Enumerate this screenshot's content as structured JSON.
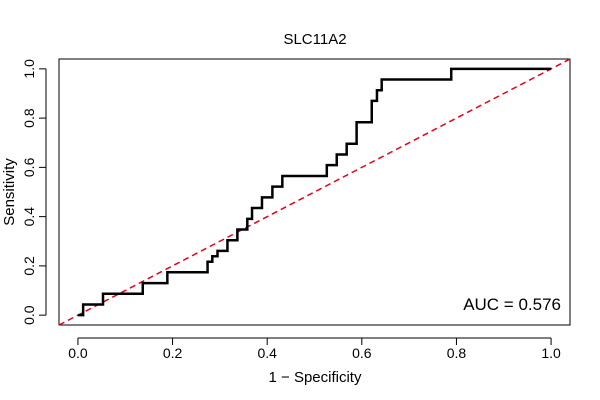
{
  "chart_data": {
    "type": "line",
    "title": "SLC11A2",
    "xlabel": "1 − Specificity",
    "ylabel": "Sensitivity",
    "xlim": [
      -0.04,
      1.04
    ],
    "ylim": [
      -0.04,
      1.04
    ],
    "xticks": [
      0.0,
      0.2,
      0.4,
      0.6,
      0.8,
      1.0
    ],
    "xtick_labels": [
      "0.0",
      "0.2",
      "0.4",
      "0.6",
      "0.8",
      "1.0"
    ],
    "yticks": [
      0.0,
      0.2,
      0.4,
      0.6,
      0.8,
      1.0
    ],
    "ytick_labels": [
      "0.0",
      "0.2",
      "0.4",
      "0.6",
      "0.8",
      "1.0"
    ],
    "annotation": "AUC = 0.576",
    "auc": 0.576,
    "series": [
      {
        "name": "ROC curve",
        "color": "#000000",
        "style": "solid",
        "x": [
          0.0,
          0.011,
          0.011,
          0.021,
          0.021,
          0.053,
          0.053,
          0.063,
          0.063,
          0.137,
          0.137,
          0.189,
          0.189,
          0.274,
          0.274,
          0.284,
          0.284,
          0.295,
          0.295,
          0.316,
          0.316,
          0.326,
          0.326,
          0.337,
          0.337,
          0.347,
          0.347,
          0.358,
          0.358,
          0.368,
          0.368,
          0.389,
          0.389,
          0.4,
          0.4,
          0.411,
          0.411,
          0.421,
          0.421,
          0.432,
          0.432,
          0.442,
          0.442,
          0.484,
          0.484,
          0.526,
          0.526,
          0.547,
          0.547,
          0.568,
          0.568,
          0.579,
          0.579,
          0.589,
          0.589,
          0.6,
          0.6,
          0.621,
          0.621,
          0.632,
          0.632,
          0.642,
          0.642,
          0.789,
          0.789,
          1.0
        ],
        "y": [
          0.0,
          0.0,
          0.043,
          0.043,
          0.043,
          0.043,
          0.087,
          0.087,
          0.087,
          0.087,
          0.13,
          0.13,
          0.174,
          0.174,
          0.217,
          0.217,
          0.239,
          0.239,
          0.261,
          0.261,
          0.304,
          0.304,
          0.304,
          0.304,
          0.348,
          0.348,
          0.348,
          0.348,
          0.391,
          0.391,
          0.435,
          0.435,
          0.478,
          0.478,
          0.478,
          0.478,
          0.522,
          0.522,
          0.522,
          0.522,
          0.565,
          0.565,
          0.565,
          0.565,
          0.565,
          0.565,
          0.609,
          0.609,
          0.652,
          0.652,
          0.696,
          0.696,
          0.696,
          0.696,
          0.783,
          0.783,
          0.783,
          0.783,
          0.87,
          0.87,
          0.913,
          0.913,
          0.957,
          0.957,
          1.0,
          1.0
        ]
      },
      {
        "name": "Reference diagonal",
        "color": "#e8001c",
        "style": "dashed",
        "x": [
          -0.04,
          1.04
        ],
        "y": [
          -0.04,
          1.04
        ]
      }
    ]
  }
}
